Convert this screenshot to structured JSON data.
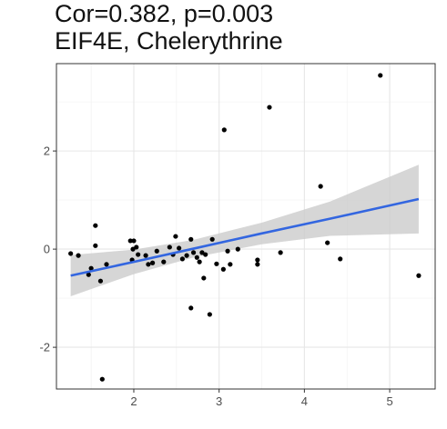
{
  "chart_data": {
    "type": "scatter",
    "title": "Cor=0.382, p=0.003",
    "subtitle": "EIF4E, Chelerythrine",
    "xlim": [
      1.093,
      5.533
    ],
    "ylim": [
      -2.85,
      3.78
    ],
    "xticks": [
      2,
      3,
      4,
      5
    ],
    "yticks": [
      -2,
      0,
      2
    ],
    "grid": true,
    "point_color": "#000000",
    "line_color": "#3366e0",
    "band_color": "#cccccc",
    "x": [
      4.89,
      3.59,
      3.06,
      4.19,
      4.27,
      4.42,
      5.34,
      3.72,
      3.45,
      3.45,
      3.22,
      3.1,
      3.05,
      3.13,
      2.97,
      2.92,
      2.82,
      2.67,
      2.89,
      1.63,
      1.55,
      1.55,
      1.26,
      1.35,
      1.47,
      1.5,
      1.61,
      1.68,
      1.96,
      2.0,
      1.99,
      2.03,
      1.98,
      2.05,
      2.14,
      2.17,
      2.22,
      2.27,
      2.35,
      2.42,
      2.46,
      2.49,
      2.53,
      2.57,
      2.62,
      2.67,
      2.7,
      2.74,
      2.77,
      2.8,
      2.84
    ],
    "y": [
      3.54,
      2.89,
      2.43,
      1.28,
      0.13,
      -0.2,
      -0.54,
      -0.07,
      -0.22,
      -0.31,
      0,
      -0.04,
      -0.41,
      -0.31,
      -0.3,
      0.2,
      -0.59,
      -1.2,
      -1.33,
      -2.65,
      0.48,
      0.07,
      -0.09,
      -0.13,
      -0.52,
      -0.39,
      -0.65,
      -0.31,
      0.17,
      0.17,
      0,
      0.04,
      -0.22,
      -0.11,
      -0.13,
      -0.31,
      -0.28,
      -0.04,
      -0.26,
      0.04,
      -0.11,
      0.26,
      0.02,
      -0.2,
      -0.13,
      0.2,
      -0.07,
      -0.17,
      -0.26,
      -0.07,
      -0.11
    ],
    "fit": {
      "x": [
        1.26,
        2,
        2.7,
        3.5,
        4.3,
        5.34
      ],
      "y": [
        -0.54,
        -0.26,
        0.01,
        0.32,
        0.62,
        1.02
      ],
      "lower": [
        -0.96,
        -0.51,
        -0.17,
        0.1,
        0.27,
        0.32
      ],
      "upper": [
        -0.12,
        -0.01,
        0.19,
        0.54,
        0.97,
        1.72
      ]
    }
  }
}
